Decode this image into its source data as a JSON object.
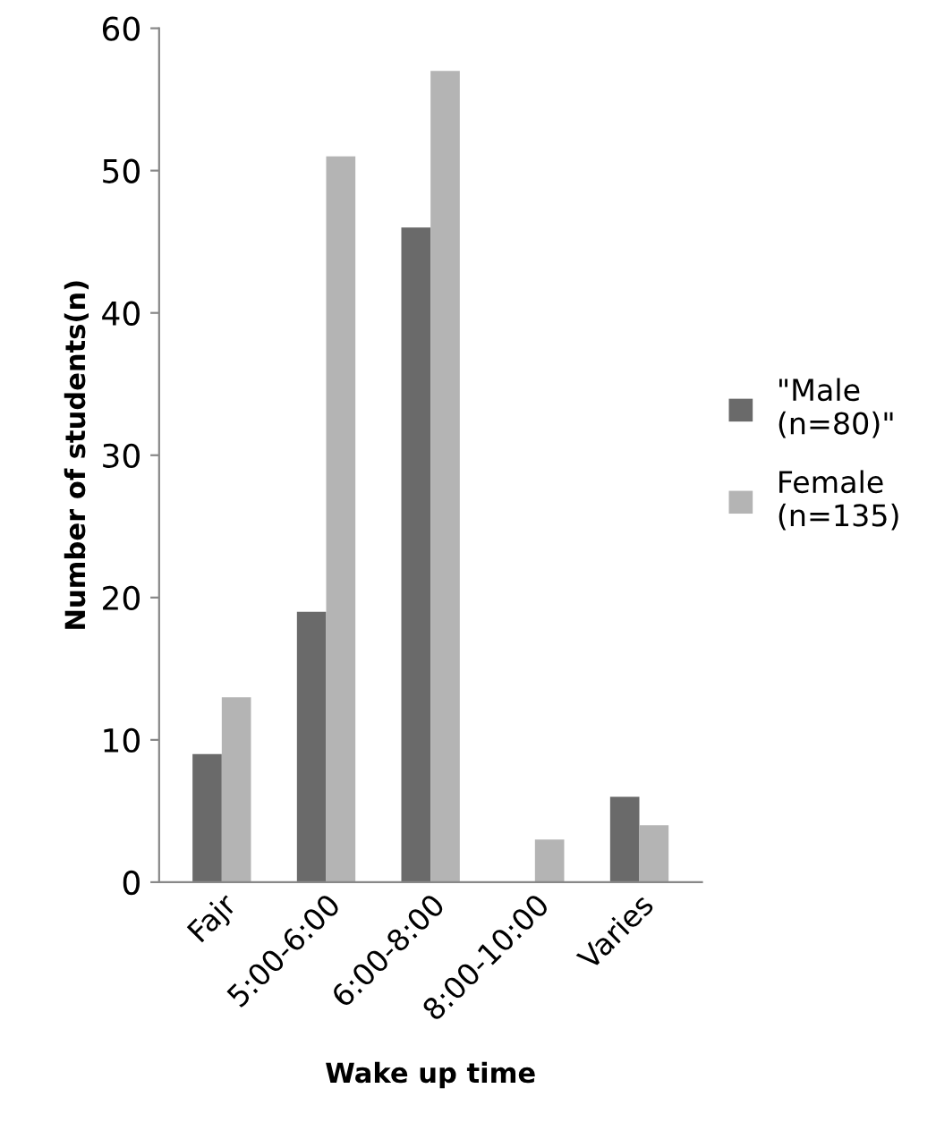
{
  "chart_data": {
    "type": "bar",
    "xlabel": "Wake up time",
    "ylabel": "Number of students(n)",
    "categories": [
      "Fajr",
      "5:00-6:00",
      "6:00-8:00",
      "8:00-10:00",
      "Varies"
    ],
    "series": [
      {
        "name": "\"Male (n=80)\"",
        "color": "#6a6a6a",
        "values": [
          9,
          19,
          46,
          0,
          6
        ]
      },
      {
        "name": "Female (n=135)",
        "color": "#b4b4b4",
        "values": [
          13,
          51,
          57,
          3,
          4
        ]
      }
    ],
    "ylim": [
      0,
      60
    ],
    "yticks": [
      0,
      10,
      20,
      30,
      40,
      50,
      60
    ],
    "grid": false,
    "legend": "right"
  }
}
